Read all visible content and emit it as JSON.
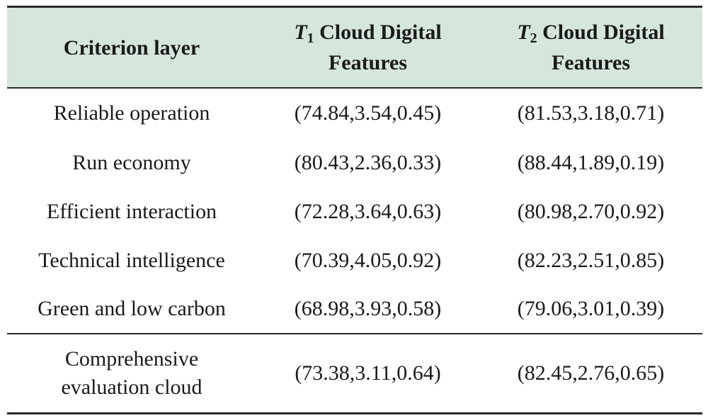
{
  "table": {
    "header": {
      "col1": "Criterion layer",
      "col2": {
        "symbol": "T",
        "subscript": "1",
        "line1_rest": " Cloud Digital",
        "line2": "Features"
      },
      "col3": {
        "symbol": "T",
        "subscript": "2",
        "line1_rest": " Cloud Digital",
        "line2": "Features"
      }
    },
    "rows": [
      {
        "criterion": "Reliable operation",
        "t1": "(74.84,3.54,0.45)",
        "t2": "(81.53,3.18,0.71)"
      },
      {
        "criterion": "Run economy",
        "t1": "(80.43,2.36,0.33)",
        "t2": "(88.44,1.89,0.19)"
      },
      {
        "criterion": "Efficient interaction",
        "t1": "(72.28,3.64,0.63)",
        "t2": "(80.98,2.70,0.92)"
      },
      {
        "criterion": "Technical intelligence",
        "t1": "(70.39,4.05,0.92)",
        "t2": "(82.23,2.51,0.85)"
      },
      {
        "criterion": "Green and low carbon",
        "t1": "(68.98,3.93,0.58)",
        "t2": "(79.06,3.01,0.39)"
      }
    ],
    "summary": {
      "criterion_line1": "Comprehensive",
      "criterion_line2": "evaluation cloud",
      "t1": "(73.38,3.11,0.64)",
      "t2": "(82.45,2.76,0.65)"
    }
  },
  "colors": {
    "header_background": "#d5e6db",
    "rule": "#2a2a2a",
    "text": "#1a1a1a"
  }
}
